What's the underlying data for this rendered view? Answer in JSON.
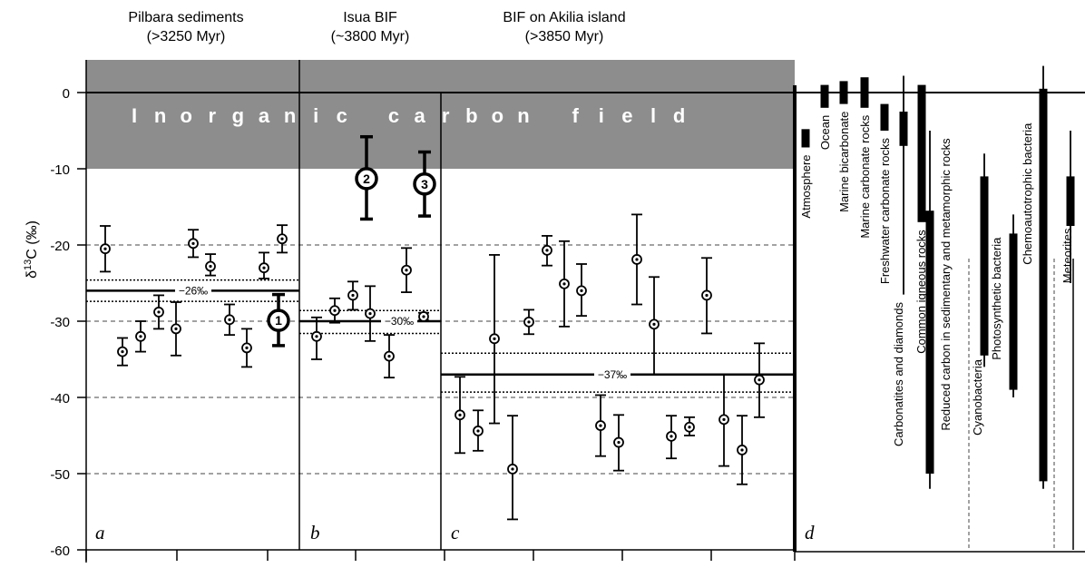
{
  "chart_data": {
    "type": "scatter",
    "ylabel": "δ13C (‰)",
    "ylim": [
      -60,
      0
    ],
    "yticks": [
      0,
      -10,
      -20,
      -30,
      -40,
      -50,
      -60
    ],
    "inorganic_field": {
      "label": "Inorganic carbon field",
      "letters": "Inorganic carbon field",
      "range": [
        0,
        -10
      ]
    },
    "panels": [
      {
        "id": "a",
        "title": "Pilbara sediments",
        "subtitle": "(>3250 Myr)",
        "mean_label": "−26‰",
        "mean": -26,
        "band": [
          -24.6,
          -27.4
        ],
        "points": [
          {
            "y": -20.5,
            "lo": -23.5,
            "hi": -17.5
          },
          {
            "y": -34.0,
            "lo": -35.8,
            "hi": -32.2
          },
          {
            "y": -32.0,
            "lo": -34.0,
            "hi": -30.0
          },
          {
            "y": -28.8,
            "lo": -31.0,
            "hi": -26.6
          },
          {
            "y": -31.0,
            "lo": -34.5,
            "hi": -27.5
          },
          {
            "y": -19.8,
            "lo": -21.6,
            "hi": -18.0
          },
          {
            "y": -22.8,
            "lo": -24.0,
            "hi": -21.2
          },
          {
            "y": -29.8,
            "lo": -31.8,
            "hi": -27.8
          },
          {
            "y": -33.5,
            "lo": -36.0,
            "hi": -31.0
          },
          {
            "y": -23.0,
            "lo": -24.4,
            "hi": -21.0
          },
          {
            "y": -19.2,
            "lo": -21.0,
            "hi": -17.4
          }
        ],
        "marked": [
          {
            "num": "1",
            "y": -29.9,
            "lo": -33.2,
            "hi": -26.5
          }
        ]
      },
      {
        "id": "b",
        "title": "Isua BIF",
        "subtitle": "(~3800 Myr)",
        "mean_label": "−30‰",
        "mean": -30,
        "band": [
          -28.6,
          -31.6
        ],
        "points": [
          {
            "y": -32.0,
            "lo": -35.0,
            "hi": -29.5
          },
          {
            "y": -28.6,
            "lo": -30.2,
            "hi": -27.0
          },
          {
            "y": -26.6,
            "lo": -28.5,
            "hi": -24.8
          },
          {
            "y": -29.0,
            "lo": -32.6,
            "hi": -25.4
          },
          {
            "y": -34.6,
            "lo": -37.4,
            "hi": -31.8
          },
          {
            "y": -23.3,
            "lo": -26.2,
            "hi": -20.4
          },
          {
            "y": -29.4,
            "lo": -29.9,
            "hi": -28.9
          }
        ],
        "marked": [
          {
            "num": "2",
            "y": -11.3,
            "lo": -16.6,
            "hi": -5.8
          },
          {
            "num": "3",
            "y": -12.0,
            "lo": -16.2,
            "hi": -7.8
          }
        ]
      },
      {
        "id": "c",
        "title": "BIF on Akilia island",
        "subtitle": "(>3850 Myr)",
        "mean_label": "−37‰",
        "mean": -37,
        "band": [
          -34.2,
          -39.3
        ],
        "points": [
          {
            "y": -42.3,
            "lo": -47.3,
            "hi": -37.3
          },
          {
            "y": -44.4,
            "lo": -47.0,
            "hi": -41.7
          },
          {
            "y": -32.3,
            "lo": -43.4,
            "hi": -21.3
          },
          {
            "y": -49.4,
            "lo": -56.0,
            "hi": -42.4
          },
          {
            "y": -30.1,
            "lo": -31.7,
            "hi": -28.5
          },
          {
            "y": -20.7,
            "lo": -22.7,
            "hi": -18.8
          },
          {
            "y": -25.1,
            "lo": -30.7,
            "hi": -19.5
          },
          {
            "y": -26.0,
            "lo": -29.3,
            "hi": -22.5
          },
          {
            "y": -43.7,
            "lo": -47.7,
            "hi": -39.7
          },
          {
            "y": -45.9,
            "lo": -49.6,
            "hi": -42.3
          },
          {
            "y": -21.9,
            "lo": -27.8,
            "hi": -16.0
          },
          {
            "y": -30.4,
            "lo": -37.0,
            "hi": -24.2
          },
          {
            "y": -45.1,
            "lo": -48.0,
            "hi": -42.4
          },
          {
            "y": -43.9,
            "lo": -45.0,
            "hi": -42.6
          },
          {
            "y": -26.6,
            "lo": -31.6,
            "hi": -21.7
          },
          {
            "y": -42.9,
            "lo": -49.0,
            "hi": -37.0
          },
          {
            "y": -46.9,
            "lo": -51.4,
            "hi": -42.4
          },
          {
            "y": -37.7,
            "lo": -42.6,
            "hi": -32.9
          }
        ],
        "marked": []
      },
      {
        "id": "d",
        "ranges": [
          {
            "label": "Atmosphere",
            "thick": [
              -4.8,
              -7.2
            ]
          },
          {
            "label": "Ocean",
            "thick": [
              1.0,
              -2.0
            ]
          },
          {
            "label": "Marine bicarbonate",
            "thick": [
              1.5,
              -1.5
            ]
          },
          {
            "label": "Marine carbonate rocks",
            "thick": [
              2.0,
              -2.0
            ]
          },
          {
            "label": "Freshwater carbonate rocks",
            "thick": [
              -1.5,
              -5.0
            ]
          },
          {
            "label": "Carbonatites and diamonds",
            "thin": [
              2.2,
              -26.5
            ],
            "thick": [
              -2.5,
              -7.0
            ]
          },
          {
            "label": "Common igneous rocks",
            "thick": [
              1.0,
              -17.0
            ]
          },
          {
            "label": "Reduced carbon in sedimentary and metamorphic rocks",
            "thin": [
              -5.0,
              -52.0
            ],
            "thick": [
              -15.5,
              -50.0
            ]
          },
          {
            "label": "Cyanobacteria",
            "thin": [
              -8.0,
              -36.0
            ],
            "thick": [
              -11.0,
              -34.5
            ]
          },
          {
            "label": "Photosynthetic bacteria",
            "thin": [
              -16.0,
              -40.0
            ],
            "thick": [
              -18.5,
              -39.0
            ]
          },
          {
            "label": "Chemoautotrophic bacteria",
            "thin": [
              3.5,
              -52.0
            ],
            "thick": [
              0.5,
              -51.0
            ]
          },
          {
            "label": "Meteorites",
            "thin": [
              -5.0,
              -25.0
            ],
            "thick": [
              -11.0,
              -17.5
            ]
          }
        ]
      }
    ]
  }
}
